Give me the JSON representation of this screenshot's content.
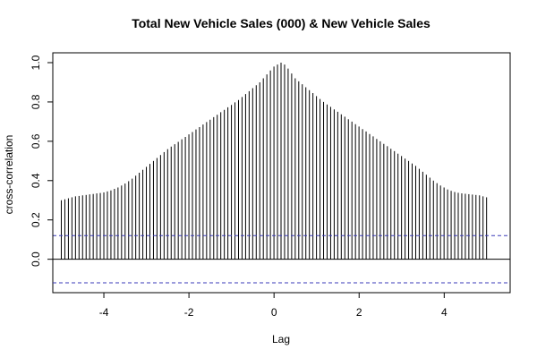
{
  "chart_data": {
    "type": "bar",
    "title": "Total New Vehicle Sales (000) & New Vehicle Sales",
    "xlabel": "Lag",
    "ylabel": "cross-correlation",
    "xlim": [
      -5.2,
      5.55
    ],
    "ylim": [
      -0.17,
      1.05
    ],
    "x_ticks": [
      -4,
      -2,
      0,
      2,
      4
    ],
    "x_tick_labels": [
      "-4",
      "-2",
      "0",
      "2",
      "4"
    ],
    "y_ticks": [
      0.0,
      0.2,
      0.4,
      0.6,
      0.8,
      1.0
    ],
    "y_tick_labels": [
      "0.0",
      "0.2",
      "0.4",
      "0.6",
      "0.8",
      "1.0"
    ],
    "lag_step": 0.0833,
    "lags_from": -5,
    "lags_to": 5,
    "values": [
      0.3,
      0.305,
      0.31,
      0.315,
      0.32,
      0.322,
      0.325,
      0.327,
      0.33,
      0.332,
      0.335,
      0.337,
      0.34,
      0.345,
      0.35,
      0.358,
      0.365,
      0.375,
      0.385,
      0.397,
      0.41,
      0.425,
      0.44,
      0.455,
      0.47,
      0.485,
      0.5,
      0.515,
      0.53,
      0.545,
      0.56,
      0.573,
      0.585,
      0.597,
      0.61,
      0.622,
      0.635,
      0.647,
      0.66,
      0.672,
      0.685,
      0.698,
      0.71,
      0.723,
      0.735,
      0.748,
      0.76,
      0.773,
      0.785,
      0.798,
      0.81,
      0.825,
      0.84,
      0.855,
      0.87,
      0.885,
      0.9,
      0.92,
      0.94,
      0.96,
      0.98,
      0.99,
      1.0,
      0.99,
      0.97,
      0.945,
      0.92,
      0.905,
      0.89,
      0.875,
      0.86,
      0.845,
      0.83,
      0.815,
      0.8,
      0.787,
      0.775,
      0.762,
      0.75,
      0.737,
      0.725,
      0.712,
      0.7,
      0.687,
      0.675,
      0.662,
      0.65,
      0.637,
      0.625,
      0.612,
      0.6,
      0.587,
      0.575,
      0.562,
      0.55,
      0.537,
      0.525,
      0.512,
      0.5,
      0.487,
      0.475,
      0.46,
      0.445,
      0.43,
      0.415,
      0.4,
      0.387,
      0.375,
      0.365,
      0.355,
      0.348,
      0.342,
      0.338,
      0.335,
      0.333,
      0.331,
      0.329,
      0.327,
      0.325,
      0.32,
      0.315
    ],
    "confidence_band": [
      0.12,
      -0.12
    ],
    "confidence_color": "#3a3ab8",
    "zero_line": 0.0,
    "grid": false,
    "legend": "none"
  }
}
